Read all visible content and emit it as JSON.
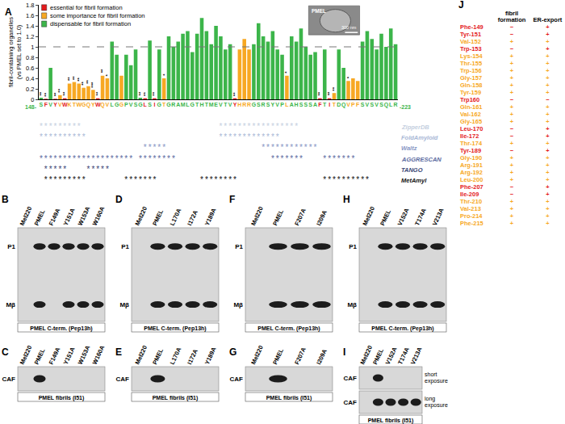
{
  "chart_data": {
    "type": "bar",
    "panel_label": "A",
    "y_label": [
      "fibril-containing organelles",
      "(vs PMEL set to 1.0)"
    ],
    "categories": [
      "S",
      "F",
      "V",
      "Y",
      "V",
      "W",
      "K",
      "T",
      "W",
      "G",
      "Q",
      "Y",
      "W",
      "Q",
      "V",
      "L",
      "G",
      "G",
      "P",
      "V",
      "S",
      "G",
      "L",
      "S",
      "I",
      "G",
      "T",
      "G",
      "R",
      "A",
      "M",
      "L",
      "G",
      "T",
      "H",
      "T",
      "M",
      "E",
      "V",
      "T",
      "V",
      "Y",
      "H",
      "R",
      "R",
      "G",
      "S",
      "R",
      "S",
      "Y",
      "V",
      "P",
      "L",
      "A",
      "H",
      "S",
      "S",
      "S",
      "A",
      "F",
      "T",
      "I",
      "T",
      "D",
      "Q",
      "V",
      "P",
      "F",
      "S",
      "V",
      "S",
      "V",
      "S",
      "Q",
      "L",
      "R"
    ],
    "values": [
      0.03,
      0.01,
      0.6,
      0.01,
      0.08,
      0.02,
      0.3,
      0.33,
      0.3,
      0.22,
      0.25,
      0.18,
      0.02,
      0.45,
      0.4,
      1.1,
      0.85,
      0.45,
      0.85,
      0.65,
      0.95,
      0.03,
      0.02,
      1.12,
      0.02,
      0.95,
      0.4,
      1.2,
      1.0,
      1.1,
      1.25,
      1.3,
      0.9,
      1.25,
      1.55,
      1.3,
      1.05,
      1.4,
      1.2,
      0.95,
      1.05,
      0.02,
      0.95,
      1.15,
      0.95,
      1.05,
      1.45,
      1.2,
      1.1,
      1.3,
      0.95,
      0.85,
      0.45,
      1.2,
      1.1,
      1.35,
      1.0,
      0.85,
      0.9,
      0.02,
      0.95,
      0.02,
      0.12,
      0.95,
      0.6,
      0.35,
      0.4,
      0.35,
      1.1,
      1.3,
      1.15,
      0.95,
      1.25,
      1.0,
      1.35,
      1.05
    ],
    "colors": [
      "#3cb54a",
      "#e41a1c",
      "#3cb54a",
      "#e41a1c",
      "#f7a823",
      "#e41a1c",
      "#f7a823",
      "#f7a823",
      "#f7a823",
      "#f7a823",
      "#f7a823",
      "#f7a823",
      "#e41a1c",
      "#f7a823",
      "#f7a823",
      "#3cb54a",
      "#3cb54a",
      "#f7a823",
      "#3cb54a",
      "#3cb54a",
      "#3cb54a",
      "#3cb54a",
      "#e41a1c",
      "#3cb54a",
      "#e41a1c",
      "#3cb54a",
      "#f7a823",
      "#3cb54a",
      "#3cb54a",
      "#3cb54a",
      "#3cb54a",
      "#3cb54a",
      "#3cb54a",
      "#3cb54a",
      "#3cb54a",
      "#3cb54a",
      "#3cb54a",
      "#3cb54a",
      "#3cb54a",
      "#3cb54a",
      "#3cb54a",
      "#e41a1c",
      "#f7a823",
      "#f7a823",
      "#f7a823",
      "#3cb54a",
      "#3cb54a",
      "#3cb54a",
      "#3cb54a",
      "#3cb54a",
      "#3cb54a",
      "#3cb54a",
      "#f7a823",
      "#3cb54a",
      "#3cb54a",
      "#3cb54a",
      "#3cb54a",
      "#3cb54a",
      "#3cb54a",
      "#e41a1c",
      "#3cb54a",
      "#e41a1c",
      "#f7a823",
      "#3cb54a",
      "#3cb54a",
      "#f7a823",
      "#f7a823",
      "#f7a823",
      "#3cb54a",
      "#3cb54a",
      "#3cb54a",
      "#3cb54a",
      "#3cb54a",
      "#3cb54a",
      "#3cb54a",
      "#3cb54a"
    ],
    "significance": [
      "**",
      "**",
      null,
      "**",
      "**",
      "**",
      "**",
      "**",
      "**",
      "**",
      "**",
      "***",
      "**",
      "**",
      "*",
      null,
      null,
      null,
      null,
      null,
      null,
      "**",
      "**",
      null,
      "**",
      null,
      "*",
      null,
      null,
      null,
      null,
      null,
      null,
      null,
      null,
      null,
      null,
      null,
      null,
      null,
      null,
      "**",
      null,
      null,
      null,
      null,
      null,
      null,
      null,
      null,
      null,
      null,
      "*",
      null,
      null,
      null,
      null,
      null,
      null,
      "**",
      null,
      "**",
      "**",
      null,
      null,
      "*",
      null,
      null,
      null,
      null,
      null,
      null,
      null,
      null,
      null,
      null
    ],
    "ylim": [
      0,
      1.8
    ],
    "yticks": [
      0,
      0.2,
      0.4,
      0.6,
      0.8,
      1,
      1.2,
      1.4,
      1.6,
      1.8
    ],
    "reference_line": 1,
    "grid": false,
    "sequence_start": "148-",
    "sequence_end": "-223",
    "first_residue": 148,
    "legend_items": [
      {
        "name": "essential for fibril formation",
        "color": "#e41a1c"
      },
      {
        "name": "some importance for fibril formation",
        "color": "#f7a823"
      },
      {
        "name": "dispensable for fibril formation",
        "color": "#3cb54a"
      }
    ],
    "inset": {
      "label": "PMEL",
      "scale_bar": "300 nm"
    },
    "predictors": [
      {
        "name": "ZipperDB",
        "color": "#c5cfe0",
        "ranges": [
          [
            148,
            156
          ],
          [
            186,
            202
          ]
        ]
      },
      {
        "name": "FoldAmyloid",
        "color": "#a9b8d6",
        "ranges": [
          [
            148,
            157
          ],
          [
            186,
            198
          ]
        ]
      },
      {
        "name": "Waltz",
        "color": "#8796c4",
        "ranges": [
          [
            170,
            174
          ],
          [
            195,
            206
          ]
        ]
      },
      {
        "name": "AGGRESCAN",
        "color": "#5b6aa0",
        "ranges": [
          [
            148,
            167
          ],
          [
            169,
            176
          ],
          [
            197,
            203
          ],
          [
            208,
            214
          ]
        ]
      },
      {
        "name": "TANGO",
        "color": "#3b4675",
        "ranges": [
          [
            149,
            153
          ],
          [
            158,
            162
          ]
        ]
      },
      {
        "name": "MetAmyl",
        "color": "#111111",
        "ranges": [
          [
            149,
            157
          ],
          [
            166,
            172
          ],
          [
            182,
            189
          ],
          [
            208,
            217
          ]
        ]
      }
    ]
  },
  "blots": [
    {
      "label": "B",
      "lanes": [
        "Mel220",
        "PMEL",
        "F149A",
        "Y151A",
        "W153A",
        "W160A"
      ],
      "rows": [
        {
          "name": "P1",
          "bands": [
            "PMEL",
            "F149A",
            "Y151A",
            "W153A",
            "W160A"
          ]
        },
        {
          "name": "Mβ",
          "bands": [
            "PMEL",
            "Y151A",
            "W153A",
            "W160A"
          ]
        }
      ],
      "caption": "PMEL C-term. (Pep13h)"
    },
    {
      "label": "C",
      "lanes": [
        "Mel220",
        "PMEL",
        "F149A",
        "Y151A",
        "W153A",
        "W160A"
      ],
      "rows": [
        {
          "name": "CAF",
          "bands": [
            "PMEL"
          ]
        }
      ],
      "caption": "PMEL fibrils (I51)"
    },
    {
      "label": "D",
      "lanes": [
        "Mel220",
        "PMEL",
        "L170A",
        "I172A",
        "Y189A"
      ],
      "rows": [
        {
          "name": "P1",
          "bands": [
            "PMEL",
            "L170A",
            "I172A",
            "Y189A"
          ]
        },
        {
          "name": "Mβ",
          "bands": [
            "PMEL",
            "L170A",
            "I172A",
            "Y189A"
          ]
        }
      ],
      "caption": "PMEL C-term. (Pep13h)"
    },
    {
      "label": "E",
      "lanes": [
        "Mel220",
        "PMEL",
        "L170A",
        "I172A",
        "Y189A"
      ],
      "rows": [
        {
          "name": "CAF",
          "bands": [
            "PMEL"
          ]
        }
      ],
      "caption": "PMEL fibrils (I51)"
    },
    {
      "label": "F",
      "lanes": [
        "Mel220",
        "PMEL",
        "F207A",
        "I209A"
      ],
      "rows": [
        {
          "name": "P1",
          "bands": [
            "PMEL",
            "F207A",
            "I209A"
          ]
        },
        {
          "name": "Mβ",
          "bands": [
            "PMEL",
            "F207A",
            "I209A"
          ]
        }
      ],
      "caption": "PMEL C-term. (Pep13h)"
    },
    {
      "label": "G",
      "lanes": [
        "Mel220",
        "PMEL",
        "F207A",
        "I209A"
      ],
      "rows": [
        {
          "name": "CAF",
          "bands": [
            "PMEL"
          ]
        }
      ],
      "caption": "PMEL fibrils (I51)"
    },
    {
      "label": "H",
      "lanes": [
        "Mel220",
        "PMEL",
        "V152A",
        "T174A",
        "V213A"
      ],
      "rows": [
        {
          "name": "P1",
          "bands": [
            "PMEL",
            "V152A",
            "T174A",
            "V213A"
          ]
        },
        {
          "name": "Mβ",
          "bands": [
            "PMEL",
            "V152A",
            "T174A",
            "V213A"
          ]
        }
      ],
      "caption": "PMEL C-term. (Pep13h)"
    },
    {
      "label": "I",
      "lanes": [
        "Mel220",
        "PMEL",
        "V152A",
        "T174A",
        "V213A"
      ],
      "rows": [
        {
          "name": "CAF",
          "note": "short exposure",
          "bands": [
            "PMEL"
          ]
        },
        {
          "name": "CAF",
          "note": "long exposure",
          "bands": [
            "PMEL",
            "V152A",
            "T174A",
            "V213A"
          ]
        }
      ],
      "caption": "PMEL fibrils (I51)"
    }
  ],
  "table": {
    "label": "J",
    "header": [
      "fibril formation",
      "ER-export"
    ],
    "rows": [
      {
        "residue": "Phe-149",
        "fibril": "−",
        "er": "+",
        "color": "#e41a1c"
      },
      {
        "residue": "Tyr-151",
        "fibril": "−",
        "er": "+",
        "color": "#e41a1c"
      },
      {
        "residue": "Val-152",
        "fibril": "+",
        "er": "+",
        "color": "#f7a823"
      },
      {
        "residue": "Trp-153",
        "fibril": "−",
        "er": "+",
        "color": "#e41a1c"
      },
      {
        "residue": "Lys-154",
        "fibril": "+",
        "er": "+",
        "color": "#f7a823"
      },
      {
        "residue": "Thr-155",
        "fibril": "+",
        "er": "+",
        "color": "#f7a823"
      },
      {
        "residue": "Trp-156",
        "fibril": "+",
        "er": "+",
        "color": "#f7a823"
      },
      {
        "residue": "Gly-157",
        "fibril": "+",
        "er": "+",
        "color": "#f7a823"
      },
      {
        "residue": "Gln-158",
        "fibril": "+",
        "er": "+",
        "color": "#f7a823"
      },
      {
        "residue": "Tyr-159",
        "fibril": "+",
        "er": "+",
        "color": "#f7a823"
      },
      {
        "residue": "Trp160",
        "fibril": "−",
        "er": "−",
        "color": "#e41a1c"
      },
      {
        "residue": "Gln-161",
        "fibril": "+",
        "er": "+",
        "color": "#f7a823"
      },
      {
        "residue": "Val-162",
        "fibril": "+",
        "er": "+",
        "color": "#f7a823"
      },
      {
        "residue": "Gly-165",
        "fibril": "+",
        "er": "+",
        "color": "#f7a823"
      },
      {
        "residue": "Leu-170",
        "fibril": "−",
        "er": "+",
        "color": "#e41a1c"
      },
      {
        "residue": "Ile-172",
        "fibril": "−",
        "er": "+",
        "color": "#e41a1c"
      },
      {
        "residue": "Thr-174",
        "fibril": "+",
        "er": "+",
        "color": "#f7a823"
      },
      {
        "residue": "Tyr-189",
        "fibril": "−",
        "er": "+",
        "color": "#e41a1c"
      },
      {
        "residue": "Gly-190",
        "fibril": "+",
        "er": "+",
        "color": "#f7a823"
      },
      {
        "residue": "Arg-191",
        "fibril": "+",
        "er": "+",
        "color": "#f7a823"
      },
      {
        "residue": "Arg-192",
        "fibril": "+",
        "er": "+",
        "color": "#f7a823"
      },
      {
        "residue": "Leu-200",
        "fibril": "+",
        "er": "+",
        "color": "#f7a823"
      },
      {
        "residue": "Phe-207",
        "fibril": "−",
        "er": "+",
        "color": "#e41a1c"
      },
      {
        "residue": "Ile-209",
        "fibril": "−",
        "er": "+",
        "color": "#e41a1c"
      },
      {
        "residue": "Thr-210",
        "fibril": "+",
        "er": "+",
        "color": "#f7a823"
      },
      {
        "residue": "Val-213",
        "fibril": "+",
        "er": "+",
        "color": "#f7a823"
      },
      {
        "residue": "Pro-214",
        "fibril": "+",
        "er": "+",
        "color": "#f7a823"
      },
      {
        "residue": "Phe-215",
        "fibril": "+",
        "er": "+",
        "color": "#f7a823"
      }
    ]
  }
}
